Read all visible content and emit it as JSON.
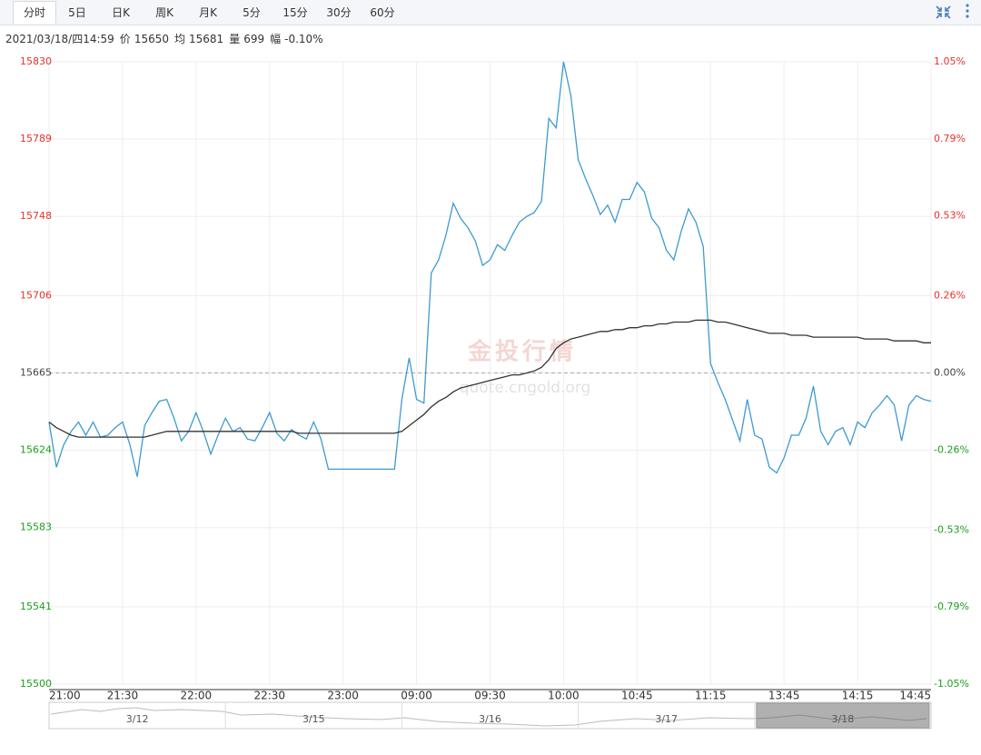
{
  "toolbar": {
    "tabs": [
      "分时",
      "5日",
      "日K",
      "周K",
      "月K",
      "5分",
      "15分",
      "30分",
      "60分"
    ],
    "active": 0
  },
  "info": {
    "datetime": "2021/03/18/四14:59",
    "items": [
      {
        "label": "价",
        "value": 15650
      },
      {
        "label": "均",
        "value": 15681
      },
      {
        "label": "量",
        "value": 699
      },
      {
        "label": "幅",
        "value": "-0.10%"
      }
    ]
  },
  "watermark": {
    "title": "金投行情",
    "url": "quote.cngold.org"
  },
  "navigator": {
    "dates": [
      "3/12",
      "3/15",
      "3/16",
      "3/17",
      "3/18"
    ],
    "active": 4
  },
  "chart_data": {
    "type": "line",
    "categories": [
      "21:00",
      null,
      null,
      null,
      null,
      null,
      null,
      null,
      null,
      null,
      "21:30",
      null,
      null,
      null,
      null,
      null,
      null,
      null,
      null,
      null,
      "22:00",
      null,
      null,
      null,
      null,
      null,
      null,
      null,
      null,
      null,
      "22:30",
      null,
      null,
      null,
      null,
      null,
      null,
      null,
      null,
      null,
      "23:00",
      null,
      null,
      null,
      null,
      null,
      null,
      null,
      null,
      null,
      "09:00",
      null,
      null,
      null,
      null,
      null,
      null,
      null,
      null,
      null,
      "09:30",
      null,
      null,
      null,
      null,
      null,
      null,
      null,
      null,
      null,
      "10:00",
      null,
      null,
      null,
      null,
      null,
      null,
      null,
      null,
      null,
      "10:45",
      null,
      null,
      null,
      null,
      null,
      null,
      null,
      null,
      null,
      "11:15",
      null,
      null,
      null,
      null,
      null,
      null,
      null,
      null,
      null,
      "13:45",
      null,
      null,
      null,
      null,
      null,
      null,
      null,
      null,
      null,
      "14:15",
      null,
      null,
      null,
      null,
      null,
      null,
      null,
      null,
      null,
      "14:45"
    ],
    "series": [
      {
        "color": "#3d9ad1",
        "values": [
          15639,
          15615,
          15627,
          15634,
          15639,
          15632,
          15639,
          15631,
          15632,
          15636,
          15639,
          15627,
          15610,
          15637,
          15644,
          15650,
          15651,
          15641,
          15629,
          15634,
          15644,
          15634,
          15622,
          15632,
          15641,
          15634,
          15636,
          15630,
          15629,
          15636,
          15644,
          15633,
          15629,
          15635,
          15632,
          15630,
          15639,
          15630,
          15614,
          15614,
          15614,
          15614,
          15614,
          15614,
          15614,
          15614,
          15614,
          15614,
          15651,
          15673,
          15651,
          15649,
          15718,
          15725,
          15738,
          15755,
          15747,
          15742,
          15735,
          15722,
          15725,
          15733,
          15730,
          15738,
          15745,
          15748,
          15750,
          15756,
          15800,
          15795,
          15830,
          15812,
          15778,
          15768,
          15759,
          15749,
          15754,
          15745,
          15757,
          15757,
          15766,
          15761,
          15747,
          15742,
          15730,
          15725,
          15740,
          15752,
          15745,
          15732,
          15670,
          15660,
          15651,
          15640,
          15629,
          15651,
          15632,
          15630,
          15615,
          15612,
          15620,
          15632,
          15632,
          15641,
          15658,
          15634,
          15627,
          15634,
          15636,
          15627,
          15639,
          15636,
          15644,
          15648,
          15653,
          15648,
          15629,
          15648,
          15653,
          15651,
          15650
        ]
      },
      {
        "color": "#333333",
        "values": [
          15639,
          15636,
          15634,
          15632,
          15631,
          15631,
          15631,
          15631,
          15631,
          15631,
          15631,
          15631,
          15631,
          15631,
          15632,
          15633,
          15634,
          15634,
          15634,
          15634,
          15634,
          15634,
          15634,
          15634,
          15634,
          15634,
          15634,
          15634,
          15634,
          15634,
          15634,
          15634,
          15634,
          15634,
          15633,
          15633,
          15633,
          15633,
          15633,
          15633,
          15633,
          15633,
          15633,
          15633,
          15633,
          15633,
          15633,
          15633,
          15634,
          15637,
          15640,
          15643,
          15647,
          15650,
          15652,
          15655,
          15657,
          15658,
          15659,
          15660,
          15661,
          15662,
          15663,
          15664,
          15664,
          15665,
          15666,
          15668,
          15672,
          15678,
          15681,
          15683,
          15684,
          15685,
          15686,
          15687,
          15687,
          15688,
          15688,
          15689,
          15689,
          15690,
          15690,
          15691,
          15691,
          15692,
          15692,
          15692,
          15693,
          15693,
          15693,
          15692,
          15692,
          15691,
          15690,
          15689,
          15688,
          15687,
          15686,
          15686,
          15686,
          15685,
          15685,
          15685,
          15684,
          15684,
          15684,
          15684,
          15684,
          15684,
          15684,
          15683,
          15683,
          15683,
          15683,
          15682,
          15682,
          15682,
          15682,
          15681,
          15681
        ]
      }
    ],
    "ylim": [
      15500,
      15830
    ],
    "yticks": [
      15830,
      15789,
      15748,
      15706,
      15665,
      15624,
      15583,
      15541,
      15500
    ],
    "y2lim": [
      -1.05,
      1.05
    ],
    "y2ticks": [
      {
        "value": 1.05,
        "label": "1.05%"
      },
      {
        "value": 0.79,
        "label": "0.79%"
      },
      {
        "value": 0.53,
        "label": "0.53%"
      },
      {
        "value": 0.26,
        "label": "0.26%"
      },
      {
        "value": 0,
        "label": "0.00%"
      },
      {
        "value": -0.26,
        "label": "-0.26%"
      },
      {
        "value": -0.53,
        "label": "-0.53%"
      },
      {
        "value": -0.79,
        "label": "-0.79%"
      },
      {
        "value": -1.05,
        "label": "-1.05%"
      }
    ],
    "reference_value": 15665,
    "colors": {
      "up": "#e8312a",
      "down": "#1a9e1a",
      "flat": "#444444"
    },
    "grid": true
  }
}
